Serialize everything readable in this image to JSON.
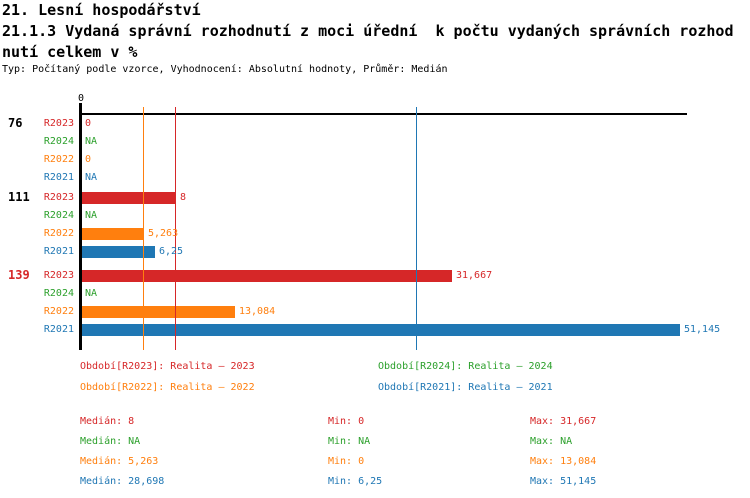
{
  "title": {
    "line1": "21. Lesní hospodářství",
    "line2": "21.1.3 Vydaná správní rozhodnutí z moci úřední  k počtu vydaných správních rozhod",
    "line3": "nutí celkem v %",
    "meta": "Typ: Počítaný podle vzorce, Vyhodnocení: Absolutní hodnoty, Průměr: Medián"
  },
  "colors": {
    "R2023": "#d62728",
    "R2024": "#2ca02c",
    "R2022": "#ff7f0e",
    "R2021": "#1f77b4",
    "axis": "#000000",
    "group_label_default": "#000000",
    "group_label_highlight": "#d62728"
  },
  "chart_data": {
    "type": "bar",
    "orientation": "horizontal",
    "unit": "%",
    "axis_tick_labels": [
      "0"
    ],
    "axis_range": [
      0,
      51.145
    ],
    "grid": false,
    "series_order": [
      "R2023",
      "R2024",
      "R2022",
      "R2021"
    ],
    "groups": [
      {
        "label": "76",
        "label_color": "#000000",
        "rows": [
          {
            "series": "R2023",
            "value": 0,
            "value_label": "0"
          },
          {
            "series": "R2024",
            "value": null,
            "value_label": "NA"
          },
          {
            "series": "R2022",
            "value": 0,
            "value_label": "0"
          },
          {
            "series": "R2021",
            "value": null,
            "value_label": "NA"
          }
        ]
      },
      {
        "label": "111",
        "label_color": "#000000",
        "rows": [
          {
            "series": "R2023",
            "value": 8,
            "value_label": "8"
          },
          {
            "series": "R2024",
            "value": null,
            "value_label": "NA"
          },
          {
            "series": "R2022",
            "value": 5.263,
            "value_label": "5,263"
          },
          {
            "series": "R2021",
            "value": 6.25,
            "value_label": "6,25"
          }
        ]
      },
      {
        "label": "139",
        "label_color": "#d62728",
        "rows": [
          {
            "series": "R2023",
            "value": 31.667,
            "value_label": "31,667"
          },
          {
            "series": "R2024",
            "value": null,
            "value_label": "NA"
          },
          {
            "series": "R2022",
            "value": 13.084,
            "value_label": "13,084"
          },
          {
            "series": "R2021",
            "value": 51.145,
            "value_label": "51,145"
          }
        ]
      }
    ],
    "median_lines": [
      {
        "series": "R2023",
        "value": 8
      },
      {
        "series": "R2022",
        "value": 5.263
      },
      {
        "series": "R2021",
        "value": 28.698
      }
    ]
  },
  "legend": {
    "items": [
      {
        "series": "R2023",
        "col": 0,
        "row": 0,
        "text": "Období[R2023]: Realita – 2023"
      },
      {
        "series": "R2022",
        "col": 0,
        "row": 1,
        "text": "Období[R2022]: Realita – 2022"
      },
      {
        "series": "R2024",
        "col": 1,
        "row": 0,
        "text": "Období[R2024]: Realita – 2024"
      },
      {
        "series": "R2021",
        "col": 1,
        "row": 1,
        "text": "Období[R2021]: Realita – 2021"
      }
    ]
  },
  "stats": {
    "rows": [
      {
        "series": "R2023",
        "median": "Medián: 8",
        "min": "Min: 0",
        "max": "Max: 31,667"
      },
      {
        "series": "R2024",
        "median": "Medián: NA",
        "min": "Min: NA",
        "max": "Max: NA"
      },
      {
        "series": "R2022",
        "median": "Medián: 5,263",
        "min": "Min: 0",
        "max": "Max: 13,084"
      },
      {
        "series": "R2021",
        "median": "Medián: 28,698",
        "min": "Min: 6,25",
        "max": "Max: 51,145"
      }
    ]
  }
}
